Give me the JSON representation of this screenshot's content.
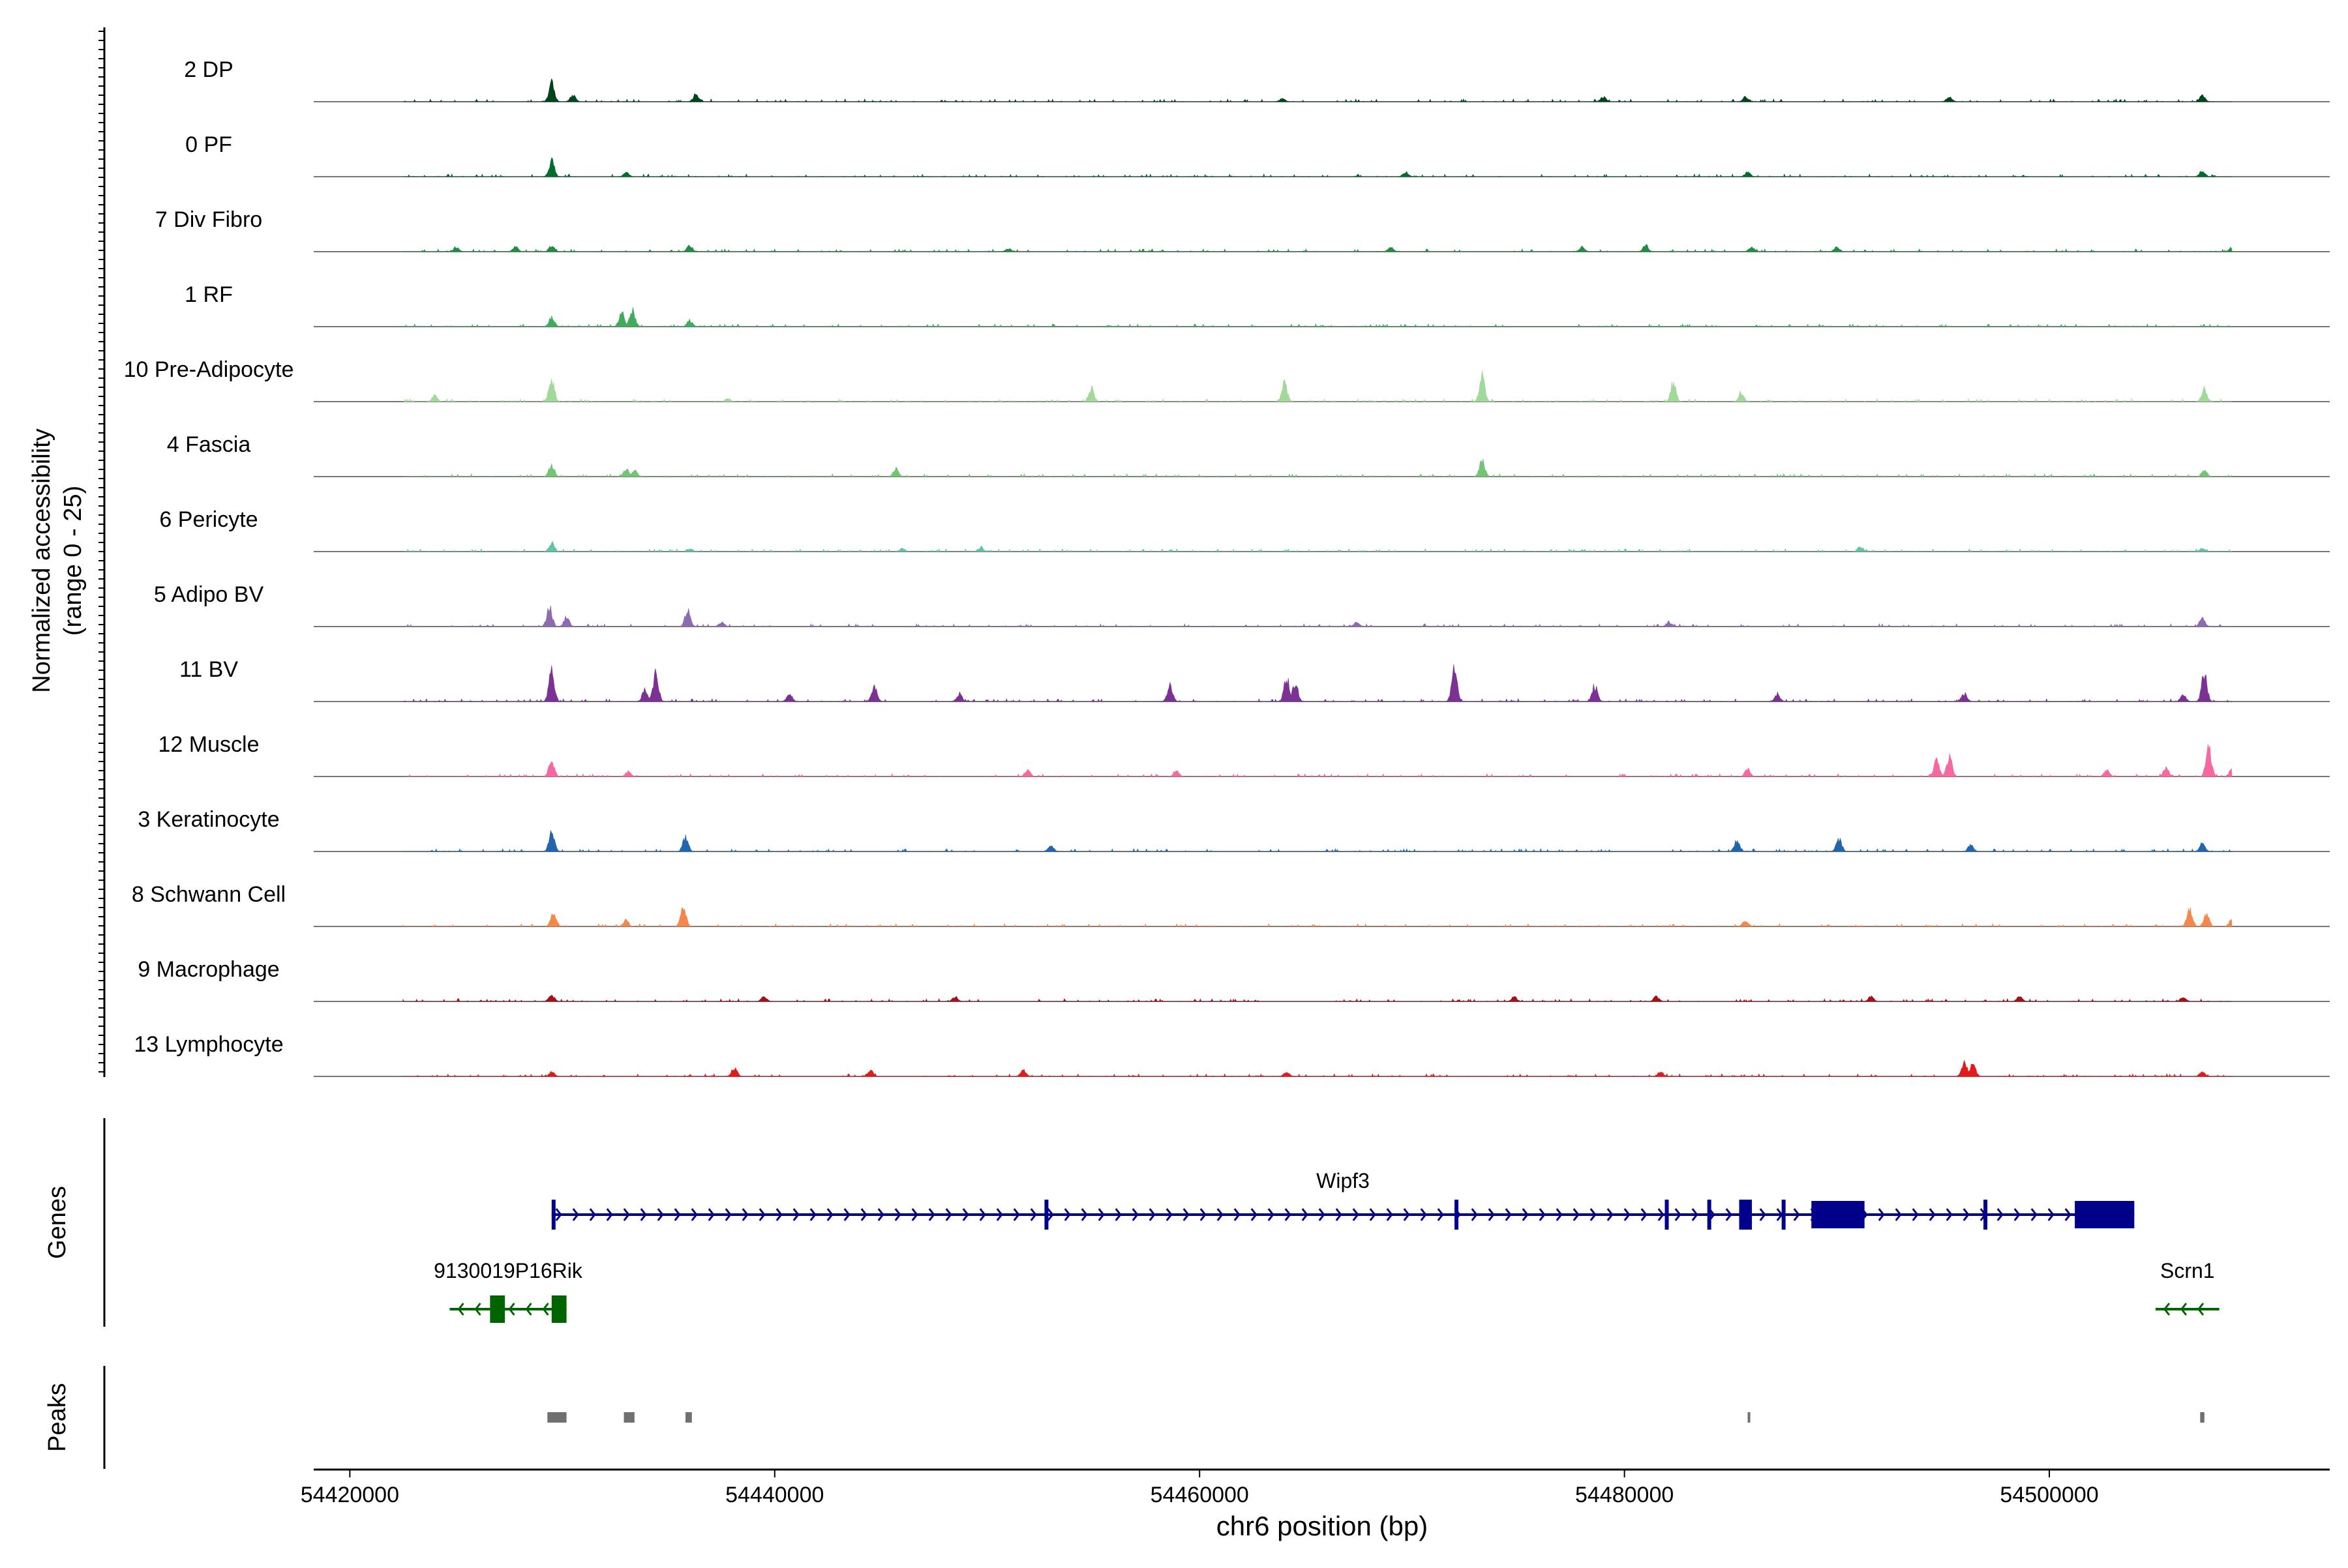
{
  "chart_data": {
    "type": "coverage",
    "title": "",
    "xlabel": "chr6 position (bp)",
    "ylabel_line1": "Normalized accessibility",
    "ylabel_line2": "(range 0 - 25)",
    "ylim": [
      0,
      25
    ],
    "xlim": [
      54418300,
      54513200
    ],
    "region_start": 54422500,
    "region_end": 54508600,
    "x_ticks": [
      54420000,
      54440000,
      54460000,
      54480000,
      54500000
    ],
    "x_tick_labels": [
      "54420000",
      "54440000",
      "54460000",
      "54480000",
      "54500000"
    ],
    "genes_label": "Genes",
    "peaks_label": "Peaks",
    "tracks": [
      {
        "name": "2 DP",
        "color": "#00441b",
        "peaks": [
          [
            54429500,
            12
          ],
          [
            54436300,
            5
          ],
          [
            54430500,
            4
          ],
          [
            54463900,
            2
          ],
          [
            54479000,
            3
          ],
          [
            54485700,
            3
          ],
          [
            54495300,
            3
          ],
          [
            54507200,
            4
          ]
        ]
      },
      {
        "name": "0 PF",
        "color": "#006d2c",
        "peaks": [
          [
            54429500,
            10
          ],
          [
            54433000,
            3
          ],
          [
            54469700,
            3
          ],
          [
            54485800,
            3
          ],
          [
            54507200,
            4
          ]
        ]
      },
      {
        "name": "7 Div Fibro",
        "color": "#238b45",
        "peaks": [
          [
            54425000,
            3
          ],
          [
            54427800,
            3
          ],
          [
            54429500,
            4
          ],
          [
            54436000,
            4
          ],
          [
            54451000,
            2
          ],
          [
            54469000,
            3
          ],
          [
            54478000,
            3
          ],
          [
            54481000,
            4
          ],
          [
            54486000,
            3
          ],
          [
            54490000,
            3
          ],
          [
            54508600,
            3
          ]
        ]
      },
      {
        "name": "1 RF",
        "color": "#41ab5d",
        "peaks": [
          [
            54429500,
            6
          ],
          [
            54432800,
            9
          ],
          [
            54433300,
            11
          ],
          [
            54436000,
            4
          ]
        ]
      },
      {
        "name": "10 Pre-Adipocyte",
        "color": "#a1d99b",
        "peaks": [
          [
            54429500,
            15
          ],
          [
            54424000,
            4
          ],
          [
            54437800,
            2
          ],
          [
            54454900,
            9
          ],
          [
            54464000,
            12
          ],
          [
            54473300,
            16
          ],
          [
            54482300,
            12
          ],
          [
            54485500,
            6
          ],
          [
            54507300,
            8
          ]
        ]
      },
      {
        "name": "4 Fascia",
        "color": "#74c476",
        "peaks": [
          [
            54429500,
            8
          ],
          [
            54433000,
            5
          ],
          [
            54433400,
            4
          ],
          [
            54445700,
            5
          ],
          [
            54473300,
            10
          ],
          [
            54507300,
            4
          ]
        ]
      },
      {
        "name": "6 Pericyte",
        "color": "#66c2a4",
        "peaks": [
          [
            54429500,
            6
          ],
          [
            54436000,
            2
          ],
          [
            54446000,
            2
          ],
          [
            54449700,
            3
          ],
          [
            54491100,
            3
          ],
          [
            54507200,
            2
          ]
        ]
      },
      {
        "name": "5 Adipo BV",
        "color": "#8c6bb1",
        "peaks": [
          [
            54429400,
            12
          ],
          [
            54430200,
            6
          ],
          [
            54435900,
            10
          ],
          [
            54467400,
            3
          ],
          [
            54482100,
            3
          ],
          [
            54507200,
            5
          ],
          [
            54437500,
            3
          ]
        ]
      },
      {
        "name": "11 BV",
        "color": "#7b3294",
        "peaks": [
          [
            54429500,
            20
          ],
          [
            54434400,
            18
          ],
          [
            54433900,
            8
          ],
          [
            54440700,
            5
          ],
          [
            54444700,
            10
          ],
          [
            54448700,
            5
          ],
          [
            54458600,
            10
          ],
          [
            54464100,
            15
          ],
          [
            54464500,
            12
          ],
          [
            54472000,
            21
          ],
          [
            54478600,
            10
          ],
          [
            54487200,
            5
          ],
          [
            54496000,
            5
          ],
          [
            54507300,
            18
          ],
          [
            54506300,
            5
          ]
        ]
      },
      {
        "name": "12 Muscle",
        "color": "#f768a1",
        "peaks": [
          [
            54429500,
            10
          ],
          [
            54433100,
            3
          ],
          [
            54451900,
            4
          ],
          [
            54458900,
            4
          ],
          [
            54485800,
            5
          ],
          [
            54495300,
            12
          ],
          [
            54494700,
            10
          ],
          [
            54502700,
            4
          ],
          [
            54507500,
            18
          ],
          [
            54505500,
            6
          ],
          [
            54508600,
            5
          ]
        ]
      },
      {
        "name": "3 Keratinocyte",
        "color": "#2166ac",
        "peaks": [
          [
            54429500,
            12
          ],
          [
            54435800,
            9
          ],
          [
            54453000,
            4
          ],
          [
            54485300,
            7
          ],
          [
            54490100,
            8
          ],
          [
            54496300,
            4
          ],
          [
            54507200,
            5
          ]
        ]
      },
      {
        "name": "8 Schwann Cell",
        "color": "#f4874b",
        "peaks": [
          [
            54429600,
            9
          ],
          [
            54435700,
            12
          ],
          [
            54433000,
            4
          ],
          [
            54485700,
            4
          ],
          [
            54506600,
            12
          ],
          [
            54507400,
            8
          ],
          [
            54508600,
            5
          ]
        ]
      },
      {
        "name": "9 Macrophage",
        "color": "#a50f15",
        "peaks": [
          [
            54429500,
            4
          ],
          [
            54439500,
            3
          ],
          [
            54448500,
            3
          ],
          [
            54474800,
            3
          ],
          [
            54481500,
            3
          ],
          [
            54491600,
            3
          ],
          [
            54498600,
            3
          ],
          [
            54506300,
            3
          ]
        ]
      },
      {
        "name": "13 Lymphocyte",
        "color": "#e31a1c",
        "peaks": [
          [
            54429500,
            3
          ],
          [
            54438100,
            6
          ],
          [
            54444500,
            4
          ],
          [
            54451700,
            4
          ],
          [
            54464100,
            3
          ],
          [
            54481700,
            3
          ],
          [
            54496000,
            10
          ],
          [
            54496400,
            8
          ],
          [
            54507200,
            3
          ]
        ]
      }
    ],
    "genes": [
      {
        "name": "Wipf3",
        "strand": "+",
        "color": "#00008b",
        "start": 54429500,
        "end": 54504000,
        "exons": [
          [
            54429500,
            54429600
          ],
          [
            54452700,
            54452800
          ],
          [
            54472000,
            54472100
          ],
          [
            54481900,
            54482000
          ],
          [
            54483900,
            54484000
          ],
          [
            54485400,
            54486000
          ],
          [
            54487400,
            54487500
          ],
          [
            54488800,
            54491300
          ],
          [
            54496900,
            54497000
          ],
          [
            54501200,
            54504000
          ]
        ]
      },
      {
        "name": "9130019P16Rik",
        "strand": "-",
        "color": "#006400",
        "start": 54424700,
        "end": 54430200,
        "exons": [
          [
            54429500,
            54430200
          ],
          [
            54426600,
            54427300
          ]
        ]
      },
      {
        "name": "Scrn1",
        "strand": "-",
        "color": "#006400",
        "start": 54505000,
        "end": 54508000,
        "exons": []
      }
    ],
    "peaks_track": [
      [
        54429300,
        54430200
      ],
      [
        54432900,
        54433400
      ],
      [
        54435800,
        54436100
      ],
      [
        54485800,
        54485900
      ],
      [
        54507100,
        54507300
      ]
    ]
  }
}
